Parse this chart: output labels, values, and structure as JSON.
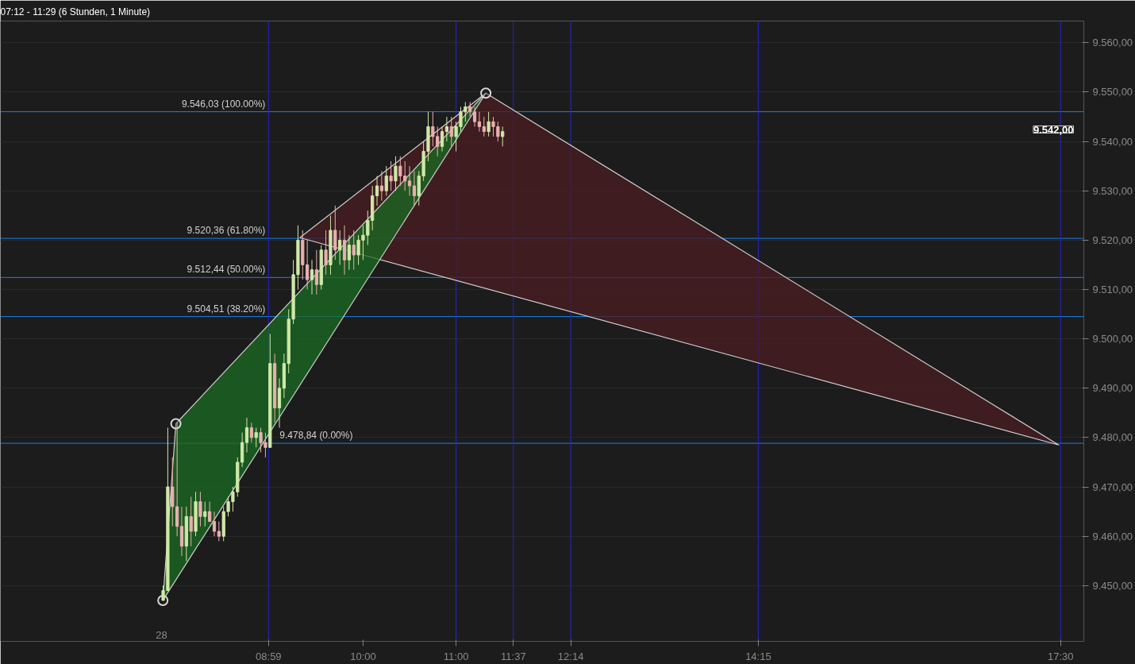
{
  "chart_data": {
    "type": "candlestick",
    "title": "07:12 - 11:29 (6 Stunden, 1 Minute)",
    "x": [
      7.85,
      7.9,
      7.95,
      8.0,
      8.05,
      8.1,
      8.15,
      8.2,
      8.25,
      8.3,
      8.35,
      8.4,
      8.45,
      8.5,
      8.55,
      8.6,
      8.65,
      8.7,
      8.75,
      8.8,
      8.85,
      8.9,
      8.95,
      9.0,
      9.05,
      9.1,
      9.15,
      9.2,
      9.25,
      9.3,
      9.35,
      9.4,
      9.45,
      9.5,
      9.55,
      9.6,
      9.65,
      9.7,
      9.75,
      9.8,
      9.85,
      9.9,
      9.95,
      10.0,
      10.05,
      10.1,
      10.15,
      10.2,
      10.25,
      10.3,
      10.35,
      10.4,
      10.45,
      10.5,
      10.55,
      10.6,
      10.65,
      10.7,
      10.75,
      10.8,
      10.85,
      10.9,
      10.95,
      11.0,
      11.05,
      11.1,
      11.15,
      11.2,
      11.25,
      11.3,
      11.35,
      11.4,
      11.45,
      11.5
    ],
    "ohlc": [
      [
        9447,
        9450,
        9447,
        9449
      ],
      [
        9449,
        9482,
        9449,
        9470
      ],
      [
        9470,
        9476,
        9462,
        9466
      ],
      [
        9466,
        9483,
        9460,
        9462
      ],
      [
        9462,
        9466,
        9456,
        9458
      ],
      [
        9458,
        9466,
        9455,
        9464
      ],
      [
        9464,
        9468,
        9458,
        9461
      ],
      [
        9461,
        9469,
        9460,
        9467
      ],
      [
        9467,
        9469,
        9462,
        9464
      ],
      [
        9464,
        9467,
        9462,
        9465
      ],
      [
        9465,
        9467,
        9463,
        9463
      ],
      [
        9463,
        9465,
        9460,
        9461
      ],
      [
        9461,
        9463,
        9459,
        9460
      ],
      [
        9460,
        9466,
        9459,
        9465
      ],
      [
        9465,
        9468,
        9464,
        9467
      ],
      [
        9467,
        9470,
        9465,
        9469
      ],
      [
        9469,
        9476,
        9468,
        9475
      ],
      [
        9475,
        9481,
        9474,
        9479
      ],
      [
        9479,
        9484,
        9477,
        9482
      ],
      [
        9482,
        9483,
        9479,
        9480
      ],
      [
        9480,
        9482,
        9478,
        9481
      ],
      [
        9481,
        9482,
        9477,
        9479
      ],
      [
        9479,
        9481,
        9476,
        9478
      ],
      [
        9478,
        9501,
        9478,
        9495
      ],
      [
        9495,
        9497,
        9483,
        9486
      ],
      [
        9486,
        9492,
        9482,
        9490
      ],
      [
        9490,
        9497,
        9488,
        9495
      ],
      [
        9495,
        9506,
        9493,
        9504
      ],
      [
        9504,
        9516,
        9503,
        9513
      ],
      [
        9513,
        9523,
        9510,
        9520
      ],
      [
        9520,
        9522,
        9512,
        9515
      ],
      [
        9515,
        9520,
        9510,
        9512
      ],
      [
        9512,
        9516,
        9509,
        9514
      ],
      [
        9514,
        9518,
        9509,
        9511
      ],
      [
        9511,
        9519,
        9510,
        9518
      ],
      [
        9518,
        9522,
        9513,
        9515
      ],
      [
        9515,
        9525,
        9513,
        9522
      ],
      [
        9522,
        9527,
        9516,
        9518
      ],
      [
        9518,
        9522,
        9515,
        9520
      ],
      [
        9520,
        9523,
        9513,
        9516
      ],
      [
        9516,
        9521,
        9514,
        9519
      ],
      [
        9519,
        9522,
        9514,
        9517
      ],
      [
        9517,
        9521,
        9515,
        9520
      ],
      [
        9520,
        9523,
        9516,
        9521
      ],
      [
        9521,
        9526,
        9519,
        9524
      ],
      [
        9524,
        9531,
        9522,
        9529
      ],
      [
        9529,
        9533,
        9527,
        9531
      ],
      [
        9531,
        9534,
        9528,
        9530
      ],
      [
        9530,
        9535,
        9529,
        9533
      ],
      [
        9533,
        9536,
        9530,
        9532
      ],
      [
        9532,
        9537,
        9530,
        9535
      ],
      [
        9535,
        9537,
        9531,
        9533
      ],
      [
        9533,
        9536,
        9530,
        9532
      ],
      [
        9532,
        9535,
        9529,
        9531
      ],
      [
        9531,
        9534,
        9527,
        9529
      ],
      [
        9529,
        9534,
        9527,
        9533
      ],
      [
        9533,
        9540,
        9532,
        9538
      ],
      [
        9538,
        9546,
        9536,
        9543
      ],
      [
        9543,
        9546,
        9539,
        9541
      ],
      [
        9541,
        9543,
        9537,
        9539
      ],
      [
        9539,
        9543,
        9538,
        9542
      ],
      [
        9542,
        9545,
        9540,
        9543
      ],
      [
        9543,
        9545,
        9539,
        9541
      ],
      [
        9541,
        9544,
        9538,
        9543
      ],
      [
        9543,
        9547,
        9542,
        9546
      ],
      [
        9546,
        9548,
        9544,
        9547
      ],
      [
        9547,
        9548,
        9545,
        9546
      ],
      [
        9546,
        9547,
        9543,
        9544
      ],
      [
        9544,
        9546,
        9542,
        9543
      ],
      [
        9543,
        9545,
        9541,
        9542
      ],
      [
        9542,
        9546,
        9541,
        9544
      ],
      [
        9544,
        9545,
        9541,
        9543
      ],
      [
        9543,
        9544,
        9540,
        9541
      ],
      [
        9541,
        9543,
        9539,
        9542
      ]
    ],
    "series": [
      {
        "type": "area",
        "color": "#4a1c22",
        "x": [
          9.32,
          11.32,
          17.48
        ],
        "values": [
          9520.5,
          9549.8,
          9478.5
        ]
      },
      {
        "type": "area",
        "color": "#1b6b22",
        "x": [
          7.847,
          7.987,
          11.32
        ],
        "values": [
          9447.0,
          9482.8,
          9549.8
        ]
      },
      {
        "type": "scatter",
        "marker": "circle",
        "color": "#d8d8d8",
        "x": [
          7.847,
          7.987,
          11.32
        ],
        "values": [
          9447.0,
          9482.8,
          9549.8
        ]
      }
    ],
    "xlim": [
      6.1,
      17.75
    ],
    "ylim": [
      9438.7,
      9564.4
    ],
    "xticks": [
      {
        "value": 8.98333,
        "label": "08:59"
      },
      {
        "value": 10.0,
        "label": "10:00"
      },
      {
        "value": 11.0,
        "label": "11:00"
      },
      {
        "value": 11.61667,
        "label": "11:37"
      },
      {
        "value": 12.23333,
        "label": "12:14"
      },
      {
        "value": 14.25,
        "label": "14:15"
      },
      {
        "value": 17.5,
        "label": "17:30"
      }
    ],
    "yticks": [
      {
        "value": 9450,
        "label": "9.450,00"
      },
      {
        "value": 9460,
        "label": "9.460,00"
      },
      {
        "value": 9470,
        "label": "9.470,00"
      },
      {
        "value": 9480,
        "label": "9.480,00"
      },
      {
        "value": 9490,
        "label": "9.490,00"
      },
      {
        "value": 9500,
        "label": "9.500,00"
      },
      {
        "value": 9510,
        "label": "9.510,00"
      },
      {
        "value": 9520,
        "label": "9.520,00"
      },
      {
        "value": 9530,
        "label": "9.530,00"
      },
      {
        "value": 9540,
        "label": "9.540,00"
      },
      {
        "value": 9550,
        "label": "9.550,00"
      },
      {
        "value": 9560,
        "label": "9.560,00"
      }
    ],
    "ref_lines": [
      {
        "axis": "x",
        "value": 8.98333,
        "color": "#2424d0"
      },
      {
        "axis": "x",
        "value": 11.0,
        "color": "#2424d0"
      },
      {
        "axis": "x",
        "value": 11.61667,
        "color": "#2424d0"
      },
      {
        "axis": "x",
        "value": 12.23333,
        "color": "#2424d0"
      },
      {
        "axis": "x",
        "value": 14.25,
        "color": "#2424d0"
      },
      {
        "axis": "x",
        "value": 17.5,
        "color": "#2424d0"
      },
      {
        "axis": "y",
        "value": 9546.03,
        "label": "9.546,03 (100.00%)",
        "color": "#1e7fe6"
      },
      {
        "axis": "y",
        "value": 9520.36,
        "label": "9.520,36 (61.80%)",
        "color": "#1e7fe6"
      },
      {
        "axis": "y",
        "value": 9512.44,
        "label": "9.512,44 (50.00%)",
        "color": "#1e7fe6"
      },
      {
        "axis": "y",
        "value": 9504.51,
        "label": "9.504,51 (38.20%)",
        "color": "#1e7fe6"
      },
      {
        "axis": "y",
        "value": 9478.84,
        "label": "9.478,84 (0.00%)",
        "color": "#1e7fe6"
      }
    ],
    "annotations": [
      "9.542,00",
      "28"
    ],
    "grid": "y"
  }
}
